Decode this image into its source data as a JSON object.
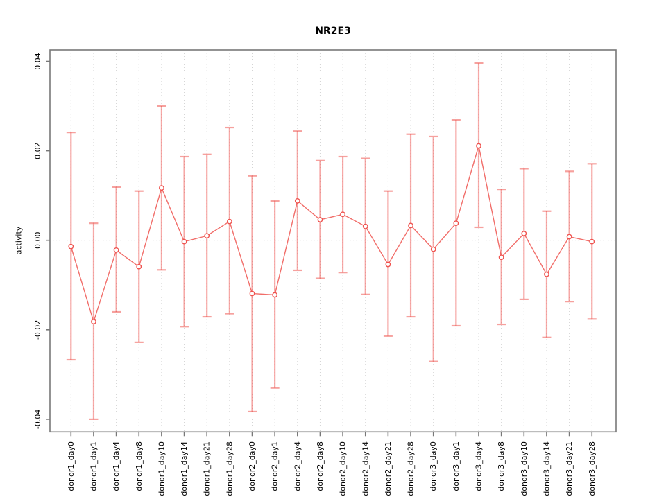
{
  "page": {
    "background": "#ffffff"
  },
  "chart_data": {
    "type": "line",
    "title": "NR2E3",
    "xlabel": "",
    "ylabel": "activity",
    "ylim": [
      -0.0428,
      0.0425
    ],
    "grid": {
      "vertical_per_category": true,
      "horizontal_zero_line": true,
      "style": "dotted"
    },
    "legend": null,
    "yticks": {
      "values": [
        -0.04,
        -0.02,
        0.0,
        0.02,
        0.04
      ],
      "labels": [
        "-0.04",
        "-0.02",
        "0.00",
        "0.02",
        "0.04"
      ]
    },
    "categories": [
      "donor1_day0",
      "donor1_day1",
      "donor1_day4",
      "donor1_day8",
      "donor1_day10",
      "donor1_day14",
      "donor1_day21",
      "donor1_day28",
      "donor2_day0",
      "donor2_day1",
      "donor2_day4",
      "donor2_day8",
      "donor2_day10",
      "donor2_day14",
      "donor2_day21",
      "donor2_day28",
      "donor3_day0",
      "donor3_day1",
      "donor3_day4",
      "donor3_day8",
      "donor3_day10",
      "donor3_day14",
      "donor3_day21",
      "donor3_day28"
    ],
    "series": [
      {
        "name": "NR2E3 activity",
        "marker": "open-circle",
        "values": [
          -0.0014,
          -0.0182,
          -0.0022,
          -0.0059,
          0.0117,
          -0.0003,
          0.001,
          0.0042,
          -0.0119,
          -0.0122,
          0.0088,
          0.0046,
          0.0058,
          0.0031,
          -0.0054,
          0.0033,
          -0.002,
          0.0038,
          0.0211,
          -0.0038,
          0.0015,
          -0.0076,
          0.0008,
          -0.0003
        ],
        "upper": [
          0.0241,
          0.0038,
          0.0119,
          0.011,
          0.03,
          0.0187,
          0.0192,
          0.0252,
          0.0144,
          0.0088,
          0.0244,
          0.0178,
          0.0187,
          0.0183,
          0.011,
          0.0237,
          0.0232,
          0.0269,
          0.0396,
          0.0114,
          0.016,
          0.0065,
          0.0154,
          0.0171
        ],
        "lower": [
          -0.0267,
          -0.04,
          -0.016,
          -0.0228,
          -0.0066,
          -0.0193,
          -0.0171,
          -0.0164,
          -0.0383,
          -0.033,
          -0.0067,
          -0.0085,
          -0.0072,
          -0.0121,
          -0.0214,
          -0.0171,
          -0.0271,
          -0.0191,
          0.0029,
          -0.0188,
          -0.0132,
          -0.0217,
          -0.0137,
          -0.0176
        ]
      }
    ],
    "colors": {
      "series_line": "#ef534f",
      "marker_fill": "#ffffff",
      "error_bar": "#ef534f",
      "grid": "#d4d4d4",
      "zero_line": "#d9d9d9",
      "axis_box": "#787878",
      "text": "#000000"
    }
  }
}
